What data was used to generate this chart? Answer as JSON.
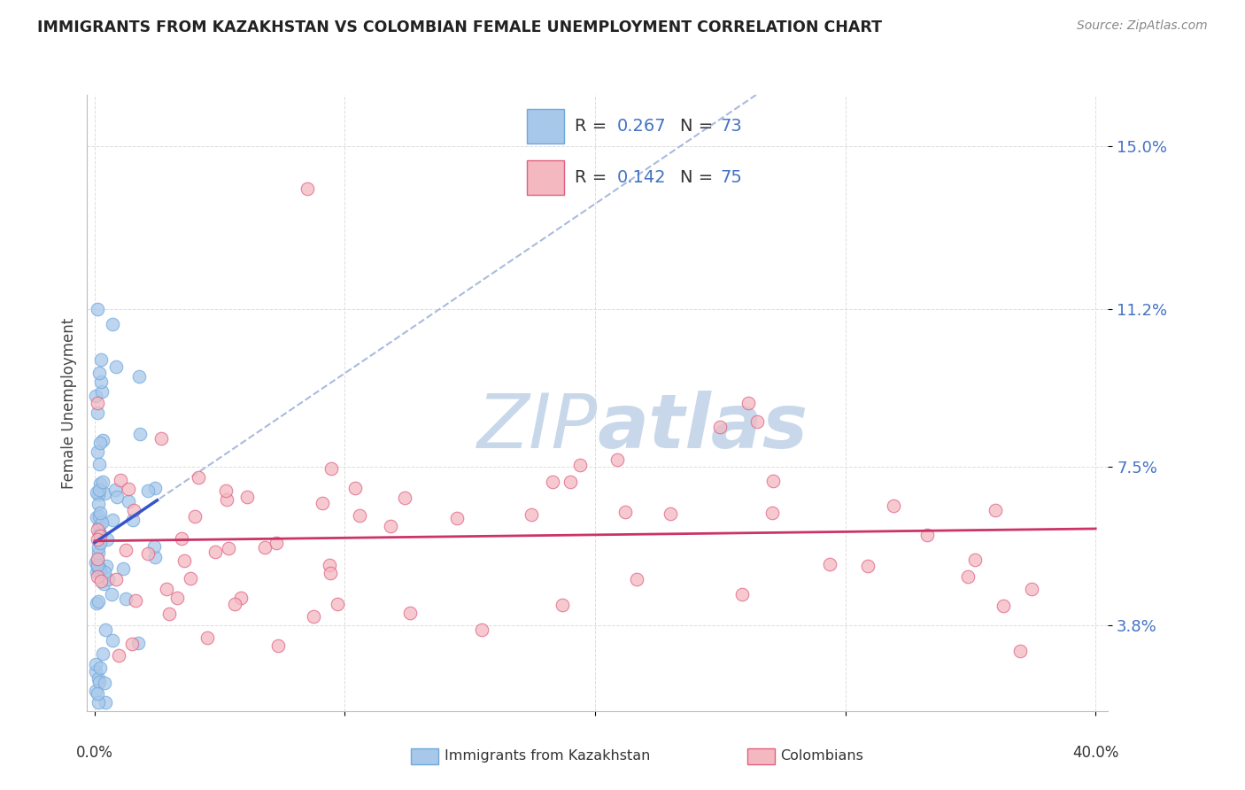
{
  "title": "IMMIGRANTS FROM KAZAKHSTAN VS COLOMBIAN FEMALE UNEMPLOYMENT CORRELATION CHART",
  "source": "Source: ZipAtlas.com",
  "ylabel": "Female Unemployment",
  "blue_label": "Immigrants from Kazakhstan",
  "pink_label": "Colombians",
  "blue_R": 0.267,
  "blue_N": 73,
  "pink_R": 0.142,
  "pink_N": 75,
  "blue_color": "#a8c8ea",
  "blue_edge_color": "#6fa8dc",
  "pink_color": "#f4b8c1",
  "pink_edge_color": "#e06080",
  "blue_line_color": "#3355cc",
  "pink_line_color": "#cc3366",
  "dashed_line_color": "#aabbdd",
  "watermark_color": "#c8d8ea",
  "background_color": "#ffffff",
  "y_ticks": [
    0.038,
    0.075,
    0.112,
    0.15
  ],
  "y_tick_labels": [
    "3.8%",
    "7.5%",
    "11.2%",
    "15.0%"
  ],
  "xlim": [
    -0.003,
    0.405
  ],
  "ylim": [
    0.018,
    0.162
  ]
}
